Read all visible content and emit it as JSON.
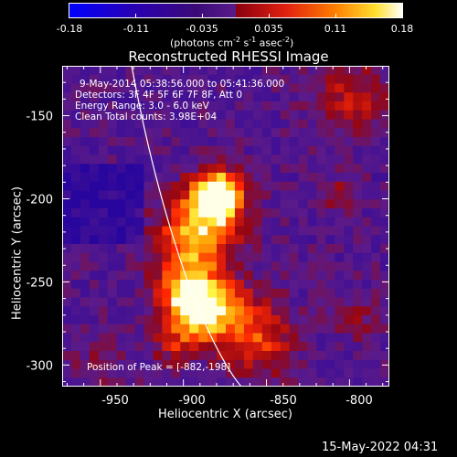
{
  "colorbar": {
    "ticks": [
      "-0.18",
      "-0.11",
      "-0.035",
      "0.035",
      "0.11",
      "0.18"
    ],
    "unit_main": "(photons cm",
    "unit_exp1": "-2",
    "unit_mid": " s",
    "unit_exp2": "-1",
    "unit_tail": " asec",
    "unit_exp3": "-2",
    "unit_close": ")",
    "colors": [
      "#0000ff",
      "#2a00aa",
      "#3a0b7a",
      "#5a1a8a",
      "#c01010",
      "#ff6000",
      "#ffd000",
      "#ffffff"
    ]
  },
  "chart_data": {
    "type": "heatmap",
    "title": "Reconstructed RHESSI Image",
    "xlabel": "Heliocentric X (arcsec)",
    "ylabel": "Heliocentric Y (arcsec)",
    "xlim": [
      -973,
      -776
    ],
    "ylim": [
      -313,
      -120
    ],
    "x_ticks": [
      "-950",
      "-900",
      "-850",
      "-800"
    ],
    "y_ticks": [
      "-150",
      "-200",
      "-250",
      "-300"
    ],
    "x_tick_values": [
      -950,
      -900,
      -850,
      -800
    ],
    "y_tick_values": [
      -150,
      -200,
      -250,
      -300
    ],
    "color_range": [
      -0.18,
      0.18
    ],
    "peak_position": [
      -882,
      -198
    ],
    "annotations": {
      "time_range": "9-May-2014 05:38:56.000 to 05:41:36.000",
      "detectors": "Detectors: 3F 4F 5F 6F 7F 8F, Att 0",
      "energy": "Energy Range: 3.0 - 6.0 keV",
      "clean": "Clean    Total counts: 3.98E+04",
      "peak": "Position of Peak = [-882,-198]"
    }
  },
  "timestamp": "15-May-2022 04:31"
}
